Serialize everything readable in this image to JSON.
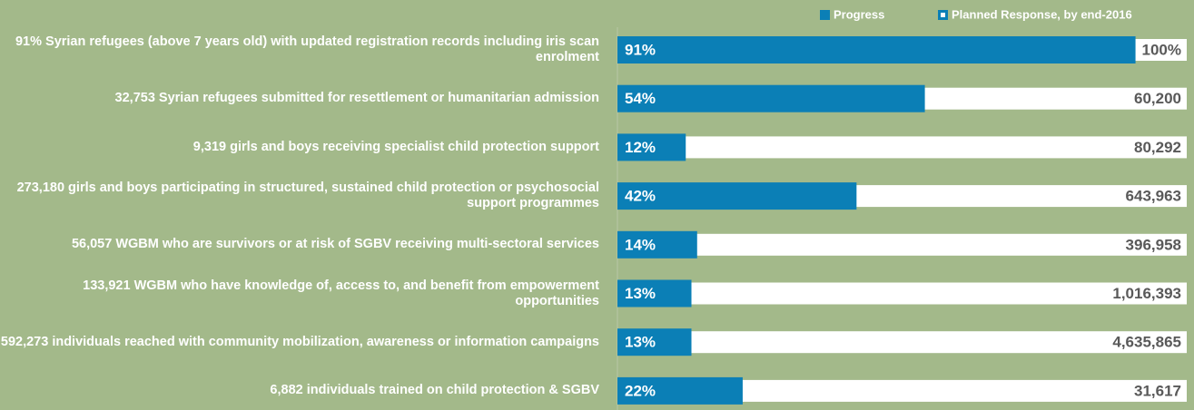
{
  "chart_data": {
    "type": "progress_bar",
    "categories": [
      "91% Syrian refugees (above 7 years old) with updated registration records including iris scan enrolment",
      "32,753 Syrian refugees submitted for resettlement or humanitarian admission",
      "9,319 girls and boys receiving specialist child protection support",
      "273,180 girls and boys participating in structured, sustained child protection or psychosocial support programmes",
      "56,057 WGBM who are survivors or at risk of SGBV receiving multi-sectoral services",
      "133,921 WGBM who have knowledge of, access to, and benefit from empowerment opportunities",
      "592,273 individuals reached with community mobilization, awareness or information campaigns",
      "6,882 individuals trained on child protection  & SGBV"
    ],
    "series": [
      {
        "name": "Progress",
        "color": "#0b7fb6",
        "values": [
          91,
          54,
          12,
          42,
          14,
          13,
          13,
          22
        ],
        "value_labels": [
          "91%",
          "54%",
          "12%",
          "42%",
          "14%",
          "13%",
          "13%",
          "22%"
        ]
      },
      {
        "name": "Planned Response, by end-2016",
        "color": "#ffffff",
        "values": [
          100,
          100,
          100,
          100,
          100,
          100,
          100,
          100
        ],
        "value_labels": [
          "100%",
          "60,200",
          "80,292",
          "643,963",
          "396,958",
          "1,016,393",
          "4,635,865",
          "31,617"
        ]
      }
    ],
    "xlim": [
      0,
      100
    ]
  }
}
